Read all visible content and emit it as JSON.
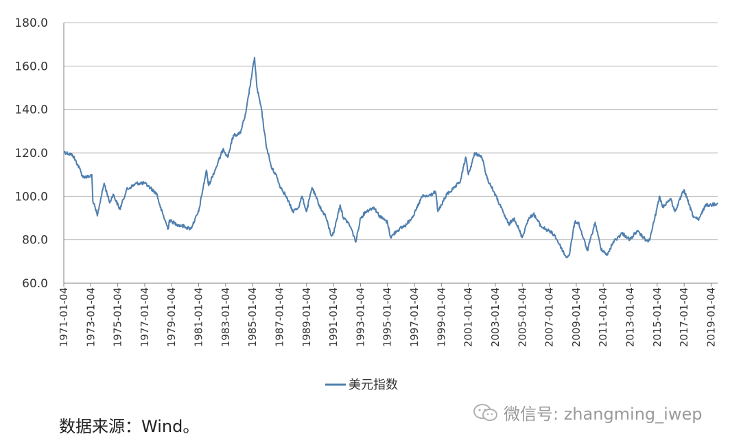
{
  "chart_data": {
    "type": "line",
    "title": "",
    "xlabel": "",
    "ylabel": "",
    "ylim": [
      60,
      180
    ],
    "yticks": [
      "60.0",
      "80.0",
      "100.0",
      "120.0",
      "140.0",
      "160.0",
      "180.0"
    ],
    "xlim": [
      "1971-01-04",
      "2019-07-01"
    ],
    "xticks": [
      "1971-01-04",
      "1973-01-04",
      "1975-01-04",
      "1977-01-04",
      "1979-01-04",
      "1981-01-04",
      "1983-01-04",
      "1985-01-04",
      "1987-01-04",
      "1989-01-04",
      "1991-01-04",
      "1993-01-04",
      "1995-01-04",
      "1997-01-04",
      "1999-01-04",
      "2001-01-04",
      "2003-01-04",
      "2005-01-04",
      "2007-01-04",
      "2009-01-04",
      "2011-01-04",
      "2013-01-04",
      "2015-01-04",
      "2017-01-04",
      "2019-01-04"
    ],
    "grid": "horizontal",
    "legend_position": "bottom-center",
    "line_color": "#4f7fae",
    "series": [
      {
        "name": "美元指数",
        "points": [
          [
            "1971-01-04",
            120.5
          ],
          [
            "1971-09-01",
            119
          ],
          [
            "1972-03-01",
            113
          ],
          [
            "1972-06-01",
            109
          ],
          [
            "1972-12-01",
            109
          ],
          [
            "1973-02-01",
            110
          ],
          [
            "1973-03-01",
            98
          ],
          [
            "1973-07-01",
            91
          ],
          [
            "1973-10-01",
            99
          ],
          [
            "1974-01-01",
            106
          ],
          [
            "1974-06-01",
            97
          ],
          [
            "1974-09-01",
            101
          ],
          [
            "1975-03-01",
            94
          ],
          [
            "1975-09-01",
            103
          ],
          [
            "1976-06-01",
            106
          ],
          [
            "1977-01-01",
            106
          ],
          [
            "1977-06-01",
            104
          ],
          [
            "1977-12-01",
            101
          ],
          [
            "1978-03-01",
            95
          ],
          [
            "1978-10-01",
            85
          ],
          [
            "1978-11-01",
            89
          ],
          [
            "1979-06-01",
            87
          ],
          [
            "1980-01-01",
            86
          ],
          [
            "1980-06-01",
            85
          ],
          [
            "1981-01-04",
            93
          ],
          [
            "1981-08-01",
            112
          ],
          [
            "1981-10-01",
            105
          ],
          [
            "1982-06-01",
            115
          ],
          [
            "1982-11-01",
            122
          ],
          [
            "1983-03-01",
            118
          ],
          [
            "1983-08-01",
            128
          ],
          [
            "1984-02-01",
            129
          ],
          [
            "1984-07-01",
            138
          ],
          [
            "1985-02-25",
            164
          ],
          [
            "1985-05-01",
            150
          ],
          [
            "1985-09-01",
            140
          ],
          [
            "1986-01-01",
            124
          ],
          [
            "1986-06-01",
            113
          ],
          [
            "1986-10-01",
            110
          ],
          [
            "1987-01-04",
            105
          ],
          [
            "1987-06-01",
            101
          ],
          [
            "1987-12-31",
            93
          ],
          [
            "1988-06-01",
            95
          ],
          [
            "1988-09-01",
            100
          ],
          [
            "1989-01-04",
            93
          ],
          [
            "1989-06-01",
            104
          ],
          [
            "1989-10-01",
            99
          ],
          [
            "1990-02-01",
            94
          ],
          [
            "1990-06-01",
            91
          ],
          [
            "1990-11-01",
            82
          ],
          [
            "1991-01-04",
            83
          ],
          [
            "1991-07-01",
            96
          ],
          [
            "1991-10-01",
            90
          ],
          [
            "1992-02-01",
            88
          ],
          [
            "1992-05-01",
            85
          ],
          [
            "1992-09-01",
            79
          ],
          [
            "1993-01-04",
            90
          ],
          [
            "1993-06-01",
            93
          ],
          [
            "1994-01-01",
            95
          ],
          [
            "1994-06-01",
            91
          ],
          [
            "1995-01-04",
            88
          ],
          [
            "1995-04-01",
            81
          ],
          [
            "1995-09-01",
            84
          ],
          [
            "1996-06-01",
            87
          ],
          [
            "1997-01-04",
            92
          ],
          [
            "1997-08-01",
            100
          ],
          [
            "1998-01-01",
            100
          ],
          [
            "1998-08-01",
            102
          ],
          [
            "1998-10-01",
            93
          ],
          [
            "1999-01-04",
            96
          ],
          [
            "1999-06-01",
            101
          ],
          [
            "2000-01-01",
            104
          ],
          [
            "2000-06-01",
            107
          ],
          [
            "2000-10-25",
            118
          ],
          [
            "2001-01-04",
            110
          ],
          [
            "2001-07-01",
            120
          ],
          [
            "2002-01-04",
            118
          ],
          [
            "2002-06-01",
            108
          ],
          [
            "2002-12-01",
            102
          ],
          [
            "2003-06-01",
            95
          ],
          [
            "2003-12-31",
            87
          ],
          [
            "2004-06-01",
            90
          ],
          [
            "2004-12-31",
            81
          ],
          [
            "2005-06-01",
            89
          ],
          [
            "2005-11-01",
            92
          ],
          [
            "2006-06-01",
            86
          ],
          [
            "2007-01-04",
            84
          ],
          [
            "2007-06-01",
            82
          ],
          [
            "2007-12-01",
            76
          ],
          [
            "2008-04-01",
            72
          ],
          [
            "2008-07-01",
            73
          ],
          [
            "2008-11-20",
            88
          ],
          [
            "2009-03-01",
            88
          ],
          [
            "2009-11-01",
            75
          ],
          [
            "2010-06-01",
            88
          ],
          [
            "2010-11-01",
            76
          ],
          [
            "2011-05-01",
            73
          ],
          [
            "2011-10-01",
            79
          ],
          [
            "2012-06-01",
            83
          ],
          [
            "2013-01-01",
            80
          ],
          [
            "2013-07-01",
            84
          ],
          [
            "2014-05-01",
            79
          ],
          [
            "2014-07-01",
            81
          ],
          [
            "2015-03-13",
            100
          ],
          [
            "2015-06-01",
            95
          ],
          [
            "2016-01-01",
            99
          ],
          [
            "2016-05-01",
            93
          ],
          [
            "2016-12-31",
            103
          ],
          [
            "2017-05-01",
            97
          ],
          [
            "2017-09-01",
            91
          ],
          [
            "2018-02-01",
            89
          ],
          [
            "2018-08-01",
            96
          ],
          [
            "2019-01-04",
            96
          ],
          [
            "2019-07-01",
            97
          ]
        ]
      }
    ]
  },
  "legend": {
    "label": "美元指数"
  },
  "source_note": "数据来源：Wind。",
  "watermark": {
    "text": "微信号: zhangming_iwep",
    "icon": "wechat-icon"
  }
}
